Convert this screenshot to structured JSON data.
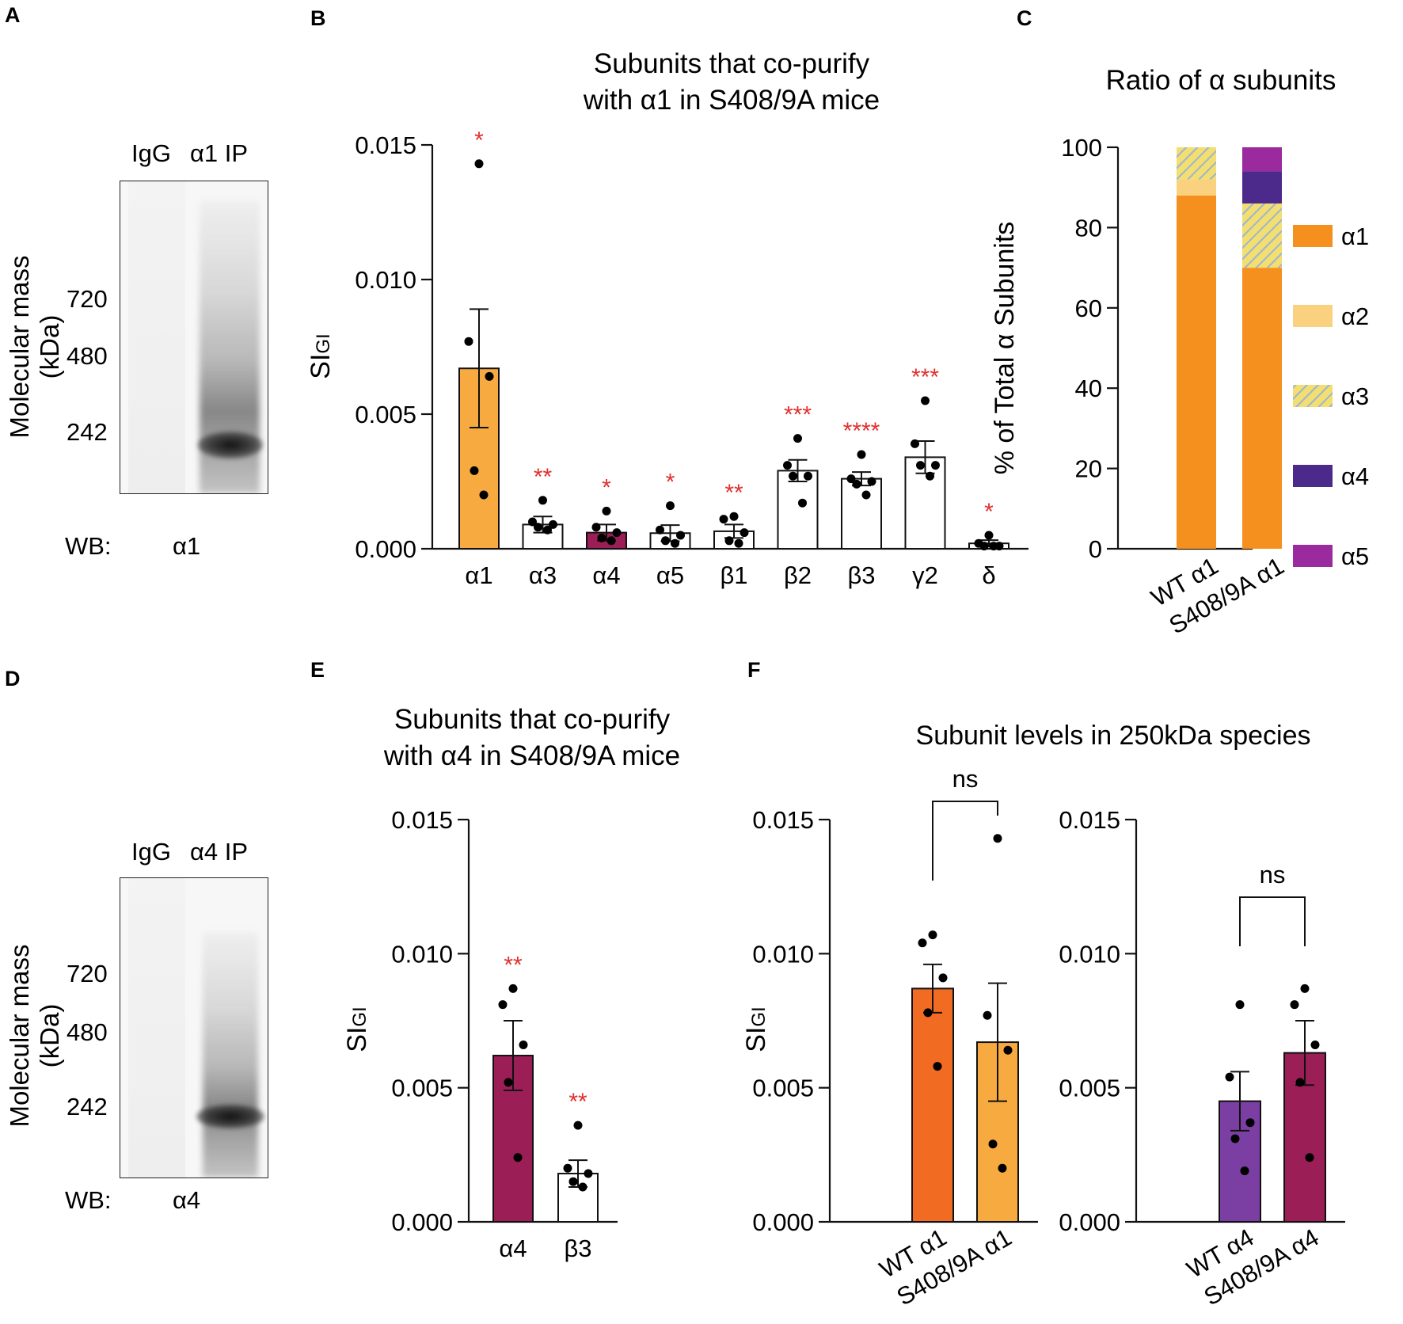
{
  "panels": {
    "A": {
      "letter": "A",
      "lanes": [
        "IgG",
        "α1 IP"
      ],
      "ylabel": "Molecular mass (kDa)",
      "markers": [
        "720",
        "480",
        "242"
      ],
      "wb_label": "WB:",
      "wb_target": "α1"
    },
    "D": {
      "letter": "D",
      "lanes": [
        "IgG",
        "α4 IP"
      ],
      "ylabel": "Molecular mass (kDa)",
      "markers": [
        "720",
        "480",
        "242"
      ],
      "wb_label": "WB:",
      "wb_target": "α4"
    },
    "B": {
      "letter": "B"
    },
    "C": {
      "letter": "C"
    },
    "E": {
      "letter": "E"
    },
    "F": {
      "letter": "F",
      "title": "Subunit levels in 250kDa species"
    }
  },
  "colors": {
    "a1_orange": "#f7aa3f",
    "a1_deep_orange": "#f5821f",
    "a2": "#fad27f",
    "a3_hatch_yellow": "#f3df6f",
    "a3_hatch_blue": "#9db3d8",
    "a4_indigo": "#4c2a8c",
    "a5_magenta": "#9a2a9e",
    "a4_bar_crimson": "#9b1e57",
    "wt_a4_purple": "#7b3fa3",
    "sig_red": "#e0302f"
  },
  "chart_data": [
    {
      "id": "B",
      "type": "bar",
      "title": [
        "Subunits that co-purify",
        "with α1 in S408/9A mice"
      ],
      "ylabel": "SI",
      "ylabel_sub": "GI",
      "ylim": [
        0,
        0.015
      ],
      "yticks": [
        "0.000",
        "0.005",
        "0.010",
        "0.015"
      ],
      "categories": [
        "α1",
        "α3",
        "α4",
        "α5",
        "β1",
        "β2",
        "β3",
        "γ2",
        "δ"
      ],
      "values": [
        0.0067,
        0.0009,
        0.0006,
        0.00058,
        0.00065,
        0.0029,
        0.0026,
        0.0034,
        0.0002
      ],
      "sem": [
        0.0022,
        0.0003,
        0.0003,
        0.0003,
        0.00025,
        0.0004,
        0.00025,
        0.0006,
        0.00012
      ],
      "fills": [
        "#f7aa3f",
        "#ffffff",
        "#9b1e57",
        "#ffffff",
        "#ffffff",
        "#ffffff",
        "#ffffff",
        "#ffffff",
        "#ffffff"
      ],
      "points": [
        [
          0.0143,
          0.0077,
          0.0064,
          0.0029,
          0.002
        ],
        [
          0.0018,
          0.001,
          0.0009,
          0.0008,
          0.0007
        ],
        [
          0.0014,
          0.0008,
          0.0006,
          0.0004,
          0.0003
        ],
        [
          0.0016,
          0.0007,
          0.0005,
          0.0003,
          0.0002
        ],
        [
          0.0012,
          0.0011,
          0.0006,
          0.0003,
          0.0002
        ],
        [
          0.0041,
          0.0031,
          0.0027,
          0.0027,
          0.0017
        ],
        [
          0.0035,
          0.0026,
          0.0025,
          0.0024,
          0.002
        ],
        [
          0.0055,
          0.0039,
          0.0031,
          0.0031,
          0.0027
        ],
        [
          0.0005,
          0.0002,
          0.0001,
          0.0001,
          0.0001
        ]
      ],
      "significance": [
        "*",
        "**",
        "*",
        "*",
        "**",
        "***",
        "****",
        "***",
        "*"
      ]
    },
    {
      "id": "C",
      "type": "stacked_bar",
      "title": "Ratio of α subunits",
      "ylabel": "% of Total α Subunits",
      "ylim": [
        0,
        100
      ],
      "yticks": [
        "0",
        "20",
        "40",
        "60",
        "80",
        "100"
      ],
      "categories": [
        "WT α1",
        "S408/9A α1"
      ],
      "series": [
        {
          "name": "α1",
          "color": "#f5901f",
          "pattern": "solid",
          "values": [
            88,
            70
          ]
        },
        {
          "name": "α2",
          "color": "#fad27f",
          "pattern": "solid",
          "values": [
            4,
            0
          ]
        },
        {
          "name": "α3",
          "color": "#f3df6f",
          "pattern": "hatch",
          "values": [
            8,
            16
          ]
        },
        {
          "name": "α4",
          "color": "#4c2a8c",
          "pattern": "solid",
          "values": [
            0,
            8
          ]
        },
        {
          "name": "α5",
          "color": "#9a2a9e",
          "pattern": "solid",
          "values": [
            0,
            6
          ]
        }
      ],
      "legend_position": "right"
    },
    {
      "id": "E",
      "type": "bar",
      "title": [
        "Subunits that co-purify",
        "with α4 in S408/9A mice"
      ],
      "ylabel": "SI",
      "ylabel_sub": "GI",
      "ylim": [
        0,
        0.015
      ],
      "yticks": [
        "0.000",
        "0.005",
        "0.010",
        "0.015"
      ],
      "categories": [
        "α4",
        "β3"
      ],
      "values": [
        0.0062,
        0.0018
      ],
      "sem": [
        0.0013,
        0.0005
      ],
      "fills": [
        "#9b1e57",
        "#ffffff"
      ],
      "points": [
        [
          0.0087,
          0.0081,
          0.0066,
          0.0052,
          0.0024
        ],
        [
          0.0036,
          0.002,
          0.0018,
          0.0015,
          0.0013
        ]
      ],
      "significance": [
        "**",
        "**"
      ]
    },
    {
      "id": "F1",
      "type": "bar",
      "ylabel": "SI",
      "ylabel_sub": "GI",
      "ylim": [
        0,
        0.015
      ],
      "yticks": [
        "0.000",
        "0.005",
        "0.010",
        "0.015"
      ],
      "categories": [
        "WT α1",
        "S408/9A α1"
      ],
      "values": [
        0.0087,
        0.0067
      ],
      "sem": [
        0.0009,
        0.0022
      ],
      "fills": [
        "#f26b22",
        "#f7aa3f"
      ],
      "points": [
        [
          0.0107,
          0.0104,
          0.0091,
          0.0078,
          0.0058
        ],
        [
          0.0143,
          0.0077,
          0.0064,
          0.0029,
          0.002
        ]
      ],
      "comparison": "ns"
    },
    {
      "id": "F2",
      "type": "bar",
      "ylabel": "",
      "ylim": [
        0,
        0.015
      ],
      "yticks": [
        "0.000",
        "0.005",
        "0.010",
        "0.015"
      ],
      "categories": [
        "WT α4",
        "S408/9A α4"
      ],
      "values": [
        0.0045,
        0.0063
      ],
      "sem": [
        0.0011,
        0.0012
      ],
      "fills": [
        "#7b3fa3",
        "#9b1e57"
      ],
      "points": [
        [
          0.0081,
          0.0054,
          0.0037,
          0.0031,
          0.0019
        ],
        [
          0.0087,
          0.0081,
          0.0066,
          0.0052,
          0.0024
        ]
      ],
      "comparison": "ns"
    }
  ]
}
